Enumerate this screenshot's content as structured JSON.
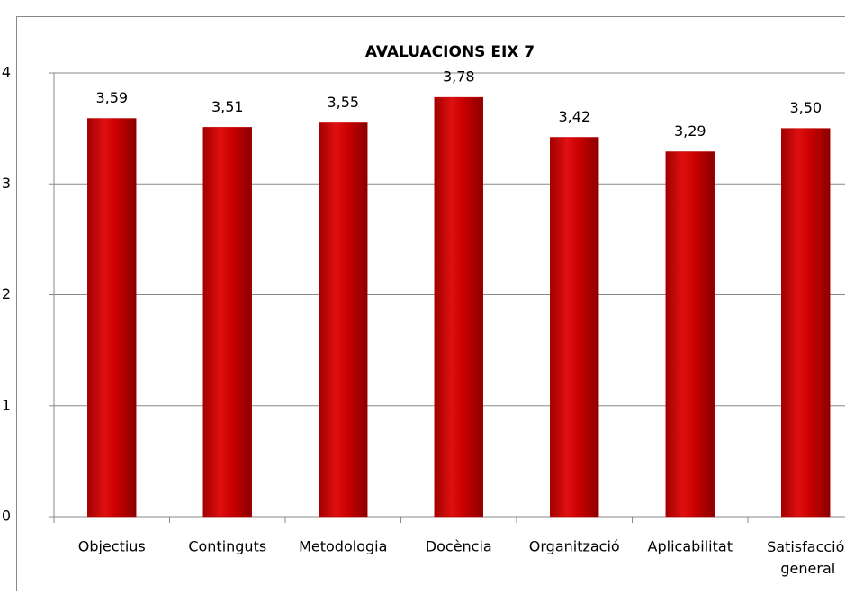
{
  "chart_data": {
    "type": "bar",
    "title": "AVALUACIONS EIX 7",
    "categories": [
      "Objectius",
      "Continguts",
      "Metodologia",
      "Docència",
      "Organització",
      "Aplicabilitat",
      "Satisfacció general"
    ],
    "values": [
      3.59,
      3.51,
      3.55,
      3.78,
      3.42,
      3.29,
      3.5
    ],
    "value_labels": [
      "3,59",
      "3,51",
      "3,55",
      "3,78",
      "3,42",
      "3,29",
      "3,50"
    ],
    "color": "#c00000",
    "ylim": [
      0,
      4
    ],
    "yticks": [
      0,
      1,
      2,
      3,
      4
    ],
    "grid": true
  }
}
